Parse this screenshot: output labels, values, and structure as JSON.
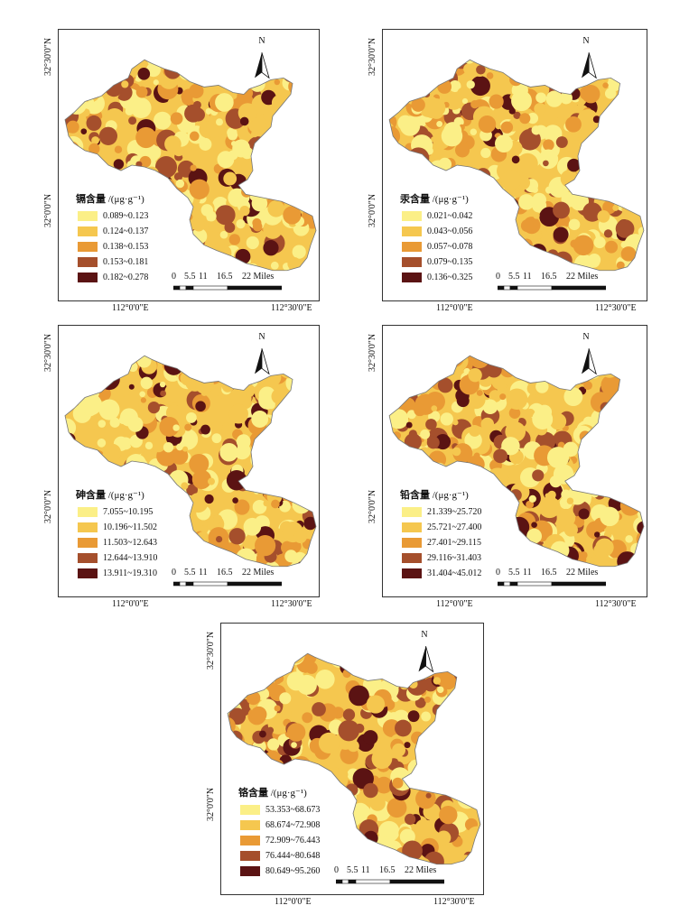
{
  "lat_labels": [
    "32°30'0\"N",
    "32°0'0\"N"
  ],
  "lon_labels": [
    "112°0'0\"E",
    "112°30'0\"E"
  ],
  "north_label": "N",
  "scale_labels": [
    "0",
    "5.5",
    "11",
    "16.5",
    "22 Miles"
  ],
  "ramp_colors": [
    "#fbef87",
    "#f5c74f",
    "#e99a35",
    "#a54f2c",
    "#5b1313"
  ],
  "panels": [
    {
      "title": "镉含量",
      "unit": "/(μg·g⁻¹)",
      "classes": [
        "0.089~0.123",
        "0.124~0.137",
        "0.138~0.153",
        "0.153~0.181",
        "0.182~0.278"
      ]
    },
    {
      "title": "汞含量",
      "unit": "/(μg·g⁻¹)",
      "classes": [
        "0.021~0.042",
        "0.043~0.056",
        "0.057~0.078",
        "0.079~0.135",
        "0.136~0.325"
      ]
    },
    {
      "title": "砷含量",
      "unit": "/(μg·g⁻¹)",
      "classes": [
        "7.055~10.195",
        "10.196~11.502",
        "11.503~12.643",
        "12.644~13.910",
        "13.911~19.310"
      ]
    },
    {
      "title": "铅含量",
      "unit": "/(μg·g⁻¹)",
      "classes": [
        "21.339~25.720",
        "25.721~27.400",
        "27.401~29.115",
        "29.116~31.403",
        "31.404~45.012"
      ]
    },
    {
      "title": "铬含量",
      "unit": "/(μg·g⁻¹)",
      "classes": [
        "53.353~68.673",
        "68.674~72.908",
        "72.909~76.443",
        "76.444~80.648",
        "80.649~95.260"
      ]
    }
  ]
}
